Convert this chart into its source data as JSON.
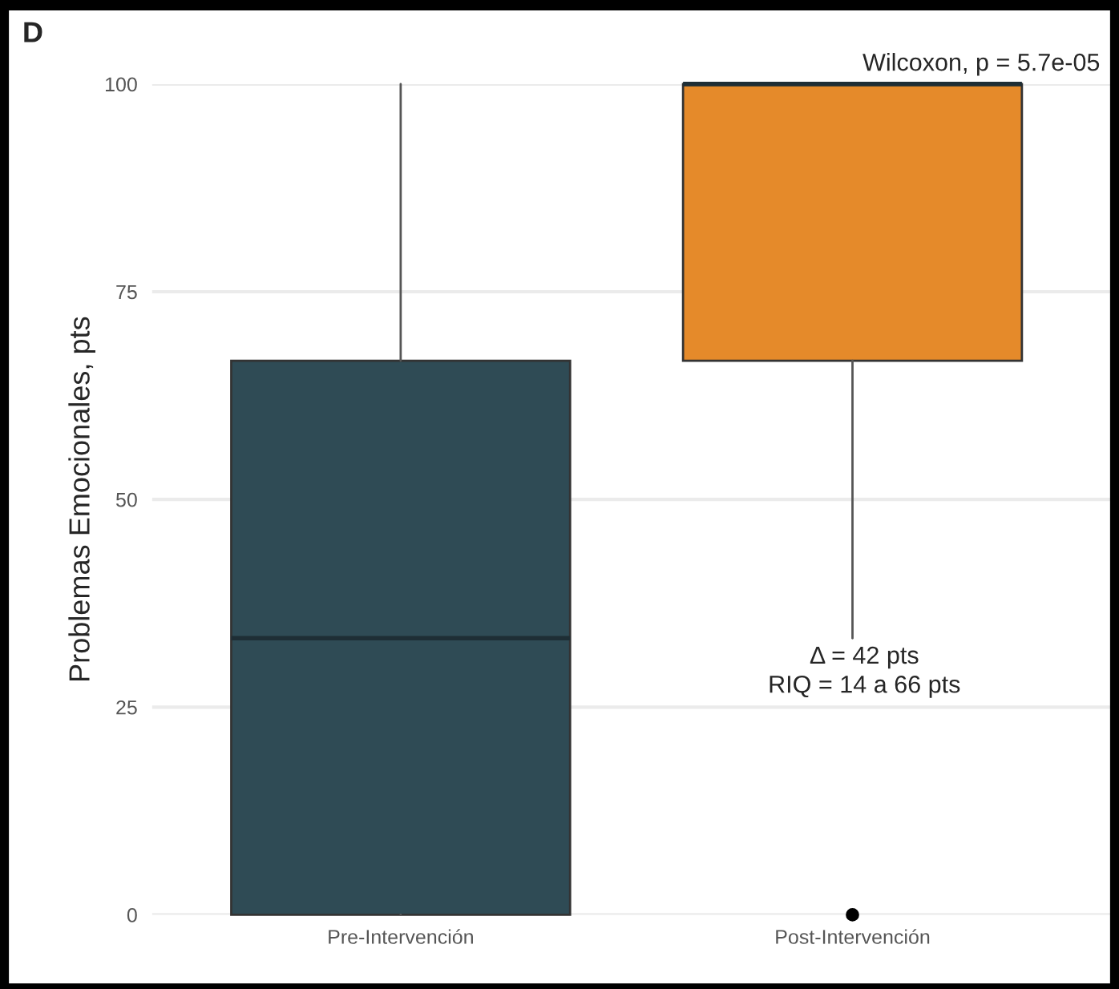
{
  "chart_data": {
    "type": "box",
    "title": "D",
    "ylabel": "Problemas Emocionales, pts",
    "categories": [
      "Pre-Intervención",
      "Post-Intervención"
    ],
    "colors": [
      "#2f4b55",
      "#e58a2a"
    ],
    "boxes": [
      {
        "low": 0,
        "q1": 0,
        "median": 33.3,
        "q3": 66.7,
        "high": 100
      },
      {
        "low": 33.3,
        "q1": 66.7,
        "median": 100,
        "q3": 100,
        "high": 100,
        "outliers": [
          0
        ]
      }
    ],
    "ylim": [
      0,
      100
    ],
    "yticks": [
      0,
      25,
      50,
      75,
      100
    ],
    "grid": "y",
    "annotations": [
      "Wilcoxon, p = 5.7e-05",
      "Δ = 42 pts",
      "RIQ = 14 a 66 pts"
    ]
  }
}
